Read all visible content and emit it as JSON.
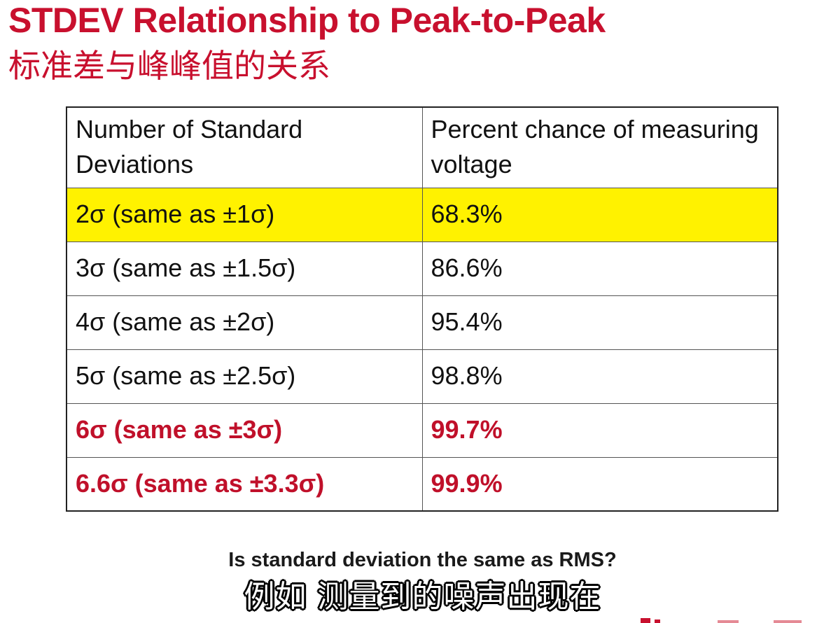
{
  "slide": {
    "title_en": "STDEV Relationship to Peak-to-Peak",
    "title_zh": "标准差与峰峰值的关系",
    "table": {
      "headers": [
        "Number of Standard Deviations",
        "Percent chance of measuring voltage"
      ],
      "rows": [
        {
          "sigma": "2σ  (same as ±1σ)",
          "percent": "68.3%"
        },
        {
          "sigma": "3σ  (same as ±1.5σ)",
          "percent": "86.6%"
        },
        {
          "sigma": "4σ  (same as ±2σ)",
          "percent": "95.4%"
        },
        {
          "sigma": "5σ  (same as ±2.5σ)",
          "percent": "98.8%"
        },
        {
          "sigma": "6σ  (same as ±3σ)",
          "percent": "99.7%"
        },
        {
          "sigma": "6.6σ  (same as ±3.3σ)",
          "percent": "99.9%"
        }
      ]
    },
    "question": "Is standard deviation the same as RMS?"
  },
  "caption": {
    "text": "例如 测量到的噪声出现在"
  },
  "colors": {
    "title": "#c8102e",
    "highlight": "#fff200",
    "emphasis_text": "#c0102a"
  }
}
